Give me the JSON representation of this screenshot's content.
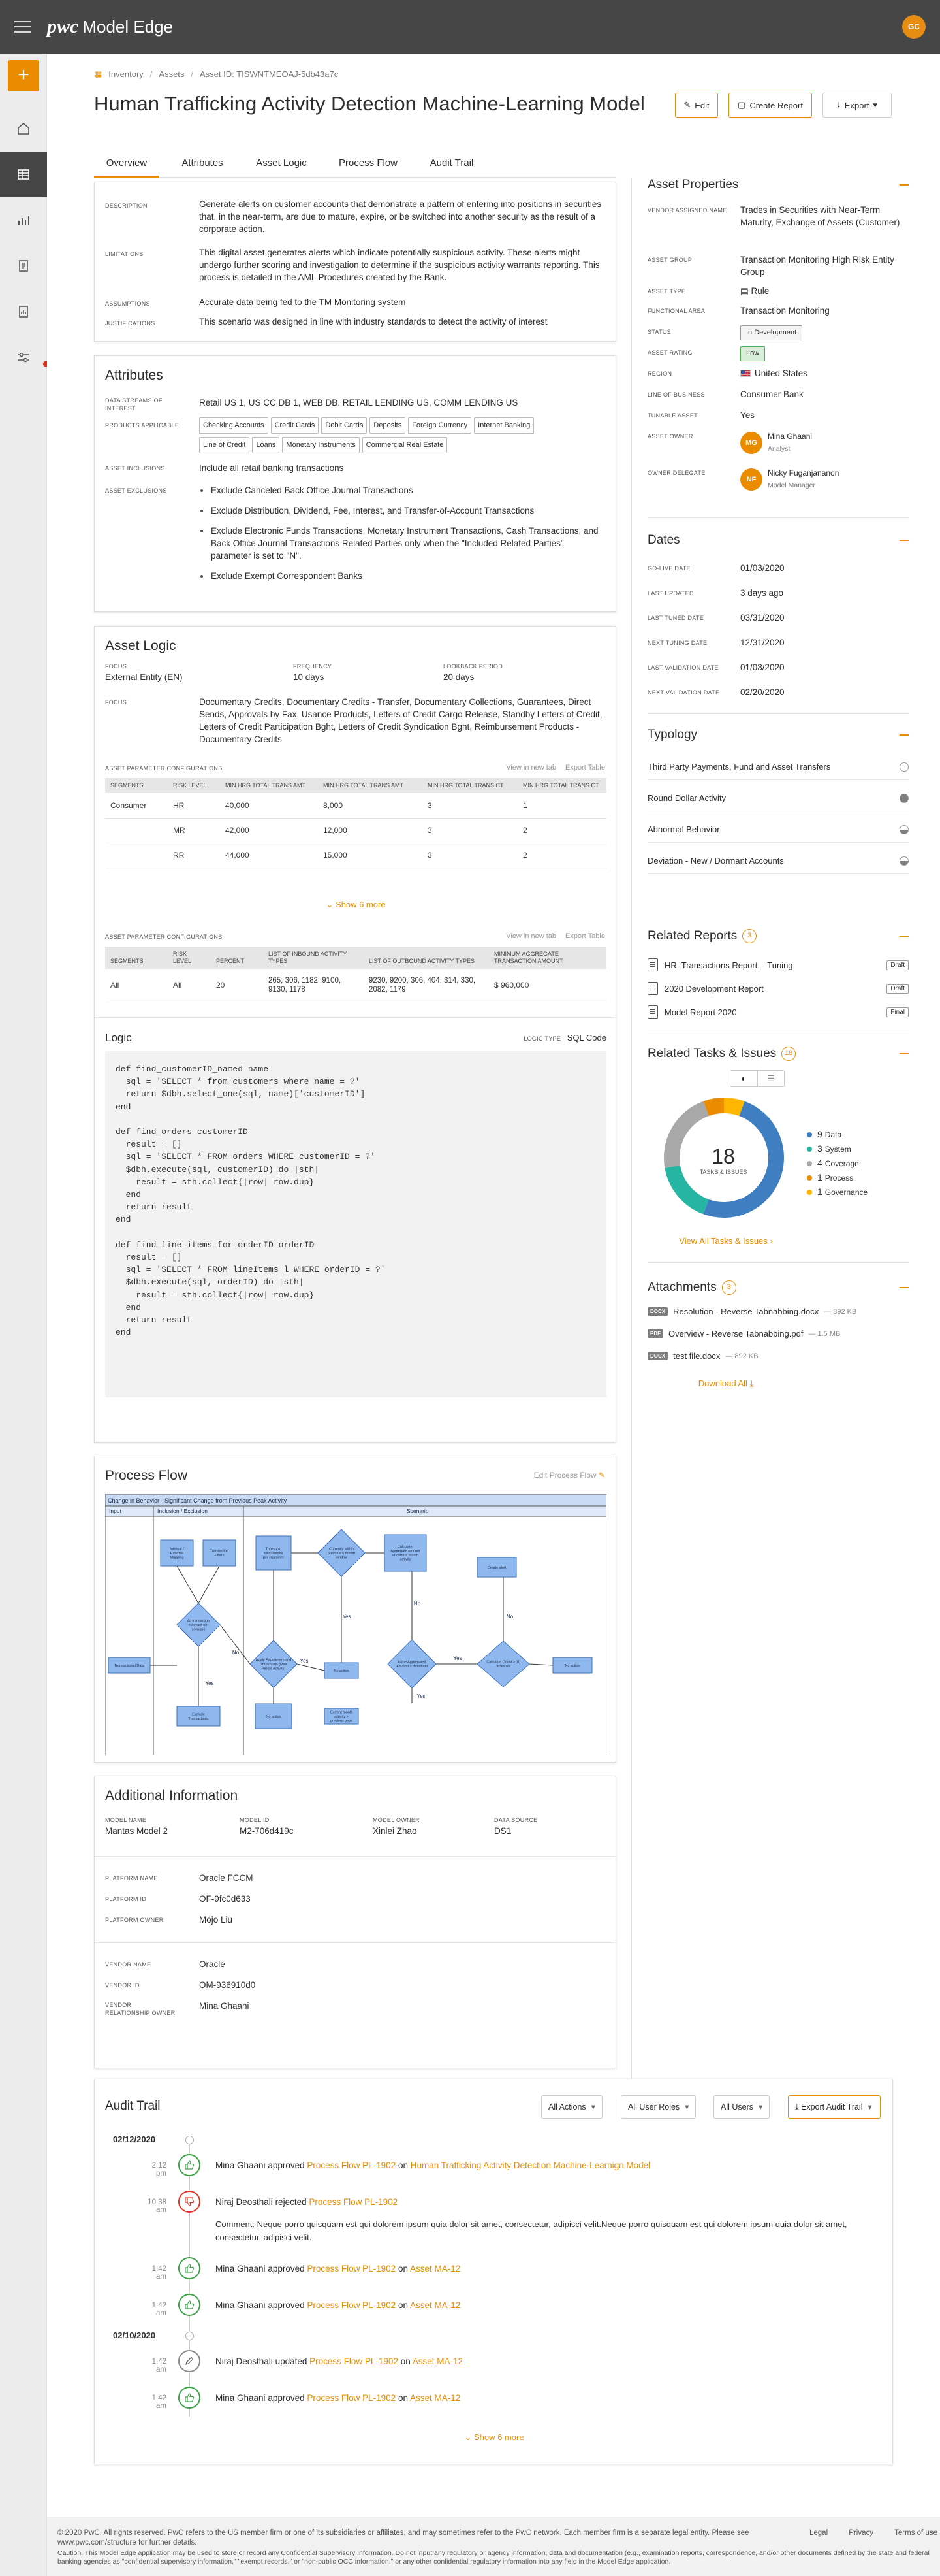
{
  "app": {
    "brand": "pwc",
    "name": "Model Edge",
    "user_initials": "GC"
  },
  "breadcrumb": [
    "Inventory",
    "Assets",
    "Asset ID: TISWNTMEOAJ-5db43a7c"
  ],
  "title": "Human Trafficking Activity Detection Machine-Learning Model",
  "actions": {
    "edit": "Edit",
    "create_report": "Create Report",
    "export": "Export"
  },
  "tabs": [
    "Overview",
    "Attributes",
    "Asset Logic",
    "Process Flow",
    "Audit Trail"
  ],
  "overview": [
    {
      "label": "Description",
      "value": "Generate alerts on customer accounts that demonstrate a pattern of entering into positions in securities that, in the near-term, are due to mature, expire, or be switched into another security as the result of a corporate action."
    },
    {
      "label": "Limitations",
      "value": "This digital asset generates alerts which indicate potentially suspicious activity. These alerts might undergo further scoring and investigation to determine if the suspicious activity warrants reporting. This process is detailed in the AML Procedures created by the Bank."
    },
    {
      "label": "Assumptions",
      "value": "Accurate data being fed to the TM Monitoring system"
    },
    {
      "label": "Justifications",
      "value": "This scenario was designed in line with industry standards to detect the activity of interest"
    }
  ],
  "attributes": {
    "title": "Attributes",
    "data_streams_label": "Data Streams of Interest",
    "data_streams": "Retail US 1, US CC DB 1, WEB DB. RETAIL LENDING US, COMM LENDING US",
    "products_label": "Products Applicable",
    "products": [
      "Checking Accounts",
      "Credit Cards",
      "Debit Cards",
      "Deposits",
      "Foreign Currency",
      "Internet Banking",
      "Line of Credit",
      "Loans",
      "Monetary Instruments",
      "Commercial Real Estate"
    ],
    "inclusions_label": "Asset Inclusions",
    "inclusions": "Include all retail banking transactions",
    "exclusions_label": "Asset Exclusions",
    "exclusions": [
      "Exclude Canceled Back Office Journal Transactions",
      "Exclude Distribution, Dividend, Fee, Interest, and Transfer-of-Account Transactions",
      "Exclude Electronic Funds Transactions, Monetary Instrument Transactions, Cash Transactions, and Back Office Journal Transactions Related Parties only when the \"Included Related Parties\" parameter is set to \"N\".",
      "Exclude Exempt Correspondent Banks"
    ]
  },
  "asset_logic": {
    "title": "Asset Logic",
    "focus_label": "Focus",
    "focus": "External Entity (EN)",
    "frequency_label": "Frequency",
    "frequency": "10 days",
    "lookback_label": "Lookback Period",
    "lookback": "20 days",
    "focus2_label": "Focus",
    "focus2": "Documentary Credits, Documentary Credits - Transfer, Documentary Collections, Guarantees, Direct Sends, Approvals by Fax, Usance Products, Letters of Credit Cargo Release, Standby Letters of Credit, Letters of Credit Participation Bght, Letters of Credit Syndication Bght, Reimbursement Products - Documentary Credits",
    "param_label": "Asset Parameter Configurations",
    "view_new_tab": "View in new tab",
    "export_table": "Export Table",
    "table1": {
      "headers": [
        "Segments",
        "Risk Level",
        "Min HRG Total Trans Amt",
        "Min HRG Total Trans Amt",
        "Min HRG Total Trans Ct",
        "Min HRG Total Trans Ct"
      ],
      "rows": [
        [
          "Consumer",
          "HR",
          "40,000",
          "8,000",
          "3",
          "1"
        ],
        [
          "",
          "MR",
          "42,000",
          "12,000",
          "3",
          "2"
        ],
        [
          "",
          "RR",
          "44,000",
          "15,000",
          "3",
          "2"
        ]
      ]
    },
    "show_more": "Show 6 more",
    "table2": {
      "headers": [
        "Segments",
        "Risk Level",
        "Percent",
        "List of Inbound Activity Types",
        "List of Outbound Activity Types",
        "Minimum Aggregate Transaction Amount"
      ],
      "rows": [
        [
          "All",
          "All",
          "20",
          "265, 306, 1182, 9100, 9130, 1178",
          "9230, 9200, 306, 404, 314, 330, 2082, 1179",
          "$ 960,000"
        ]
      ]
    },
    "logic_label": "Logic",
    "logic_type_label": "Logic Type",
    "logic_type": "SQL Code",
    "code": "def find_customerID_named name\n  sql = 'SELECT * from customers where name = ?'\n  return $dbh.select_one(sql, name)['customerID']\nend\n\ndef find_orders customerID\n  result = []\n  sql = 'SELECT * FROM orders WHERE customerID = ?'\n  $dbh.execute(sql, customerID) do |sth|\n    result = sth.collect{|row| row.dup}\n  end\n  return result\nend\n\ndef find_line_items_for_orderID orderID\n  result = []\n  sql = 'SELECT * FROM lineItems l WHERE orderID = ?'\n  $dbh.execute(sql, orderID) do |sth|\n    result = sth.collect{|row| row.dup}\n  end\n  return result\nend"
  },
  "process_flow": {
    "title": "Process Flow",
    "edit": "Edit Process Flow",
    "diagram_title": "Change in Behavior - Significant Change from Previous Peak Activity",
    "lanes": [
      "Input",
      "Inclusion / Exclusion",
      "Scenario"
    ],
    "nodes": [
      "Transactional Data",
      "Internal / External Mapping",
      "Transaction Filters",
      "All transaction relevant for scenario",
      "Exclude Transactions",
      "Apply Parameters and Thresholds (Max Period Activity)",
      "Threshold calculations per customer",
      "Currently within previous 6 month window",
      "Current month activity > previous peak",
      "Calculate: Aggregate amount of current month activity",
      "Is the Aggregated Amount > threshold",
      "Create alert",
      "Calculate Count > 10 activities",
      "No action",
      "No action",
      "No action"
    ],
    "edges": [
      "Yes",
      "No",
      "Yes",
      "No",
      "Yes",
      "No",
      "Yes",
      "No",
      "Yes"
    ]
  },
  "additional": {
    "title": "Additional Information",
    "model": [
      {
        "label": "Model Name",
        "value": "Mantas Model 2"
      },
      {
        "label": "Model ID",
        "value": "M2-706d419c"
      },
      {
        "label": "Model Owner",
        "value": "Xinlei Zhao"
      },
      {
        "label": "Data Source",
        "value": "DS1"
      }
    ],
    "platform": [
      {
        "label": "Platform Name",
        "value": "Oracle FCCM"
      },
      {
        "label": "Platform ID",
        "value": "OF-9fc0d633"
      },
      {
        "label": "Platform Owner",
        "value": "Mojo Liu"
      }
    ],
    "vendor": [
      {
        "label": "Vendor Name",
        "value": "Oracle"
      },
      {
        "label": "Vendor ID",
        "value": "OM-936910d0"
      },
      {
        "label": "Vendor Relationship Owner",
        "value": "Mina Ghaani"
      }
    ]
  },
  "properties": {
    "title": "Asset Properties",
    "vendor_name_label": "Vendor Assigned Name",
    "vendor_name": "Trades in Securities with Near-Term Maturity, Exchange of Assets (Customer)",
    "group_label": "Asset Group",
    "group": "Transaction Monitoring High Risk Entity Group",
    "type_label": "Asset Type",
    "type": "Rule",
    "area_label": "Functional Area",
    "area": "Transaction Monitoring",
    "status_label": "Status",
    "status": "In Development",
    "rating_label": "Asset Rating",
    "rating": "Low",
    "region_label": "Region",
    "region": "United States",
    "lob_label": "Line of Business",
    "lob": "Consumer Bank",
    "tunable_label": "Tunable Asset",
    "tunable": "Yes",
    "owner_label": "Asset Owner",
    "owner": "Mina Ghaani",
    "owner_role": "Analyst",
    "owner_initials": "MG",
    "delegate_label": "Owner Delegate",
    "delegate": "Nicky Fuganjananon",
    "delegate_role": "Model Manager",
    "delegate_initials": "NF"
  },
  "dates": {
    "title": "Dates",
    "items": [
      {
        "label": "Go-Live Date",
        "value": "01/03/2020"
      },
      {
        "label": "Last Updated",
        "value": "3 days ago"
      },
      {
        "label": "Last Tuned Date",
        "value": "03/31/2020"
      },
      {
        "label": "Next Tuning Date",
        "value": "12/31/2020"
      },
      {
        "label": "Last Validation Date",
        "value": "01/03/2020"
      },
      {
        "label": "Next Validation Date",
        "value": "02/20/2020"
      }
    ]
  },
  "typology": {
    "title": "Typology",
    "items": [
      {
        "label": "Third Party Payments, Fund and Asset Transfers",
        "level": 0
      },
      {
        "label": "Round Dollar Activity",
        "level": 1
      },
      {
        "label": "Abnormal Behavior",
        "level": 0.5
      },
      {
        "label": "Deviation - New / Dormant Accounts",
        "level": 0.5
      }
    ]
  },
  "reports": {
    "title": "Related Reports",
    "count": "3",
    "items": [
      {
        "name": "HR. Transactions Report. - Tuning",
        "status": "Draft"
      },
      {
        "name": "2020 Development Report",
        "status": "Draft"
      },
      {
        "name": "Model Report 2020",
        "status": "Final"
      }
    ]
  },
  "tasks": {
    "title": "Related Tasks & Issues",
    "count": "18",
    "total": "18",
    "total_label": "Tasks & Issues",
    "segments": [
      {
        "name": "Data",
        "value": 9,
        "color": "#3f7fc1"
      },
      {
        "name": "System",
        "value": 3,
        "color": "#26b5a2"
      },
      {
        "name": "Coverage",
        "value": 4,
        "color": "#a8a8a8"
      },
      {
        "name": "Process",
        "value": 1,
        "color": "#eb8c00"
      },
      {
        "name": "Governance",
        "value": 1,
        "color": "#ffb600"
      }
    ],
    "view_all": "View All Tasks & Issues"
  },
  "attachments": {
    "title": "Attachments",
    "count": "3",
    "items": [
      {
        "type": "DOCX",
        "name": "Resolution - Reverse Tabnabbing.docx",
        "size": "— 892 KB"
      },
      {
        "type": "PDF",
        "name": "Overview - Reverse Tabnabbing.pdf",
        "size": "— 1.5 MB"
      },
      {
        "type": "DOCX",
        "name": "test file.docx",
        "size": "— 892 KB"
      }
    ],
    "download_all": "Download All"
  },
  "audit": {
    "title": "Audit Trail",
    "filters": [
      "All Actions",
      "All User Roles",
      "All Users"
    ],
    "export": "Export Audit Trail",
    "date1": "02/12/2020",
    "date2": "02/10/2020",
    "entries": [
      {
        "time": "2:12 pm",
        "user": "Mina Ghaani",
        "verb": "approved",
        "obj": "Process Flow PL-1902",
        "on": "on",
        "target": "Human Trafficking Activity Detection Machine-Learnign Model"
      },
      {
        "time": "10:38 am",
        "user": "Niraj Deosthali",
        "verb": "rejected",
        "obj": "Process Flow PL-1902",
        "on": "",
        "target": ""
      },
      {
        "time": "1:42 am",
        "user": "Mina Ghaani",
        "verb": "approved",
        "obj": "Process Flow PL-1902",
        "on": "on",
        "target": "Asset MA-12"
      },
      {
        "time": "1:42 am",
        "user": "Mina Ghaani",
        "verb": "approved",
        "obj": "Process Flow PL-1902",
        "on": "on",
        "target": "Asset MA-12"
      },
      {
        "time": "1:42 am",
        "user": "Niraj Deosthali",
        "verb": "updated",
        "obj": "Process Flow PL-1902",
        "on": "on",
        "target": "Asset MA-12"
      },
      {
        "time": "1:42 am",
        "user": "Mina Ghaani",
        "verb": "approved",
        "obj": "Process Flow PL-1902",
        "on": "on",
        "target": "Asset MA-12"
      }
    ],
    "comment": "Comment: Neque porro quisquam est qui dolorem ipsum quia dolor sit amet, consectetur, adipisci velit.Neque porro quisquam est qui dolorem ipsum quia dolor sit amet, consectetur, adipisci velit.",
    "show_more": "Show 6 more"
  },
  "footer": {
    "copyright": "© 2020 PwC. All rights reserved. PwC refers to the US member firm or one of its subsidiaries or affiliates, and may sometimes refer to the PwC network. Each member firm is a separate legal entity. Please see www.pwc.com/structure for further details.",
    "caution": "Caution: This Model Edge application may be used to store or record any Confidential Supervisory Information. Do not input any regulatory or agency information, data and documentation (e.g., examination reports, correspondence, and/or other documents defined by the state and federal banking agencies as \"confidential supervisory information,\" \"exempt records,\" or \"non-public OCC information,\" or any other confidential regulatory information into any field in the Model Edge application.",
    "links": [
      "Legal",
      "Privacy",
      "Terms of use"
    ]
  }
}
